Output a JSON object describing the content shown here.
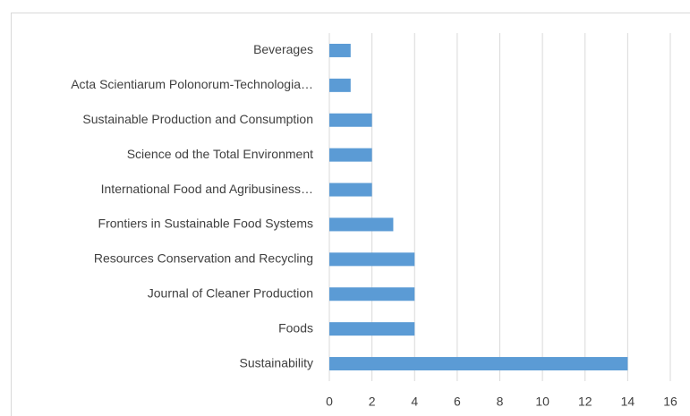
{
  "chart_data": {
    "type": "bar",
    "orientation": "horizontal",
    "categories": [
      "Beverages",
      "Acta Scientiarum Polonorum-Technologia…",
      "Sustainable Production and Consumption",
      "Science od the Total Environment",
      "International Food and Agribusiness…",
      "Frontiers in Sustainable Food Systems",
      "Resources Conservation and Recycling",
      "Journal of Cleaner Production",
      "Foods",
      "Sustainability"
    ],
    "values": [
      1,
      1,
      2,
      2,
      2,
      3,
      4,
      4,
      4,
      14
    ],
    "color": "#5b9bd5",
    "xlim": [
      0,
      16
    ],
    "xticks": [
      0,
      2,
      4,
      6,
      8,
      10,
      12,
      14,
      16
    ],
    "grid": true
  }
}
